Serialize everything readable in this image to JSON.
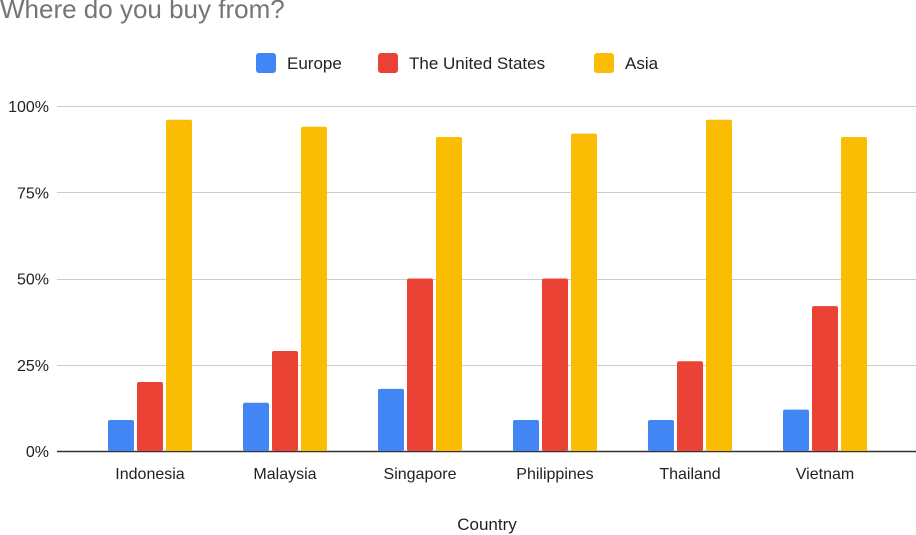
{
  "chart_data": {
    "type": "bar",
    "title": "Where do you buy from?",
    "xlabel": "Country",
    "ylabel": "",
    "ylim": [
      0,
      100
    ],
    "yticks": [
      "0%",
      "25%",
      "50%",
      "75%",
      "100%"
    ],
    "ytick_values": [
      0,
      25,
      50,
      75,
      100
    ],
    "grid": true,
    "legend_position": "top",
    "categories": [
      "Indonesia",
      "Malaysia",
      "Singapore",
      "Philippines",
      "Thailand",
      "Vietnam"
    ],
    "series": [
      {
        "name": "Europe",
        "color": "#4285F4",
        "values": [
          9,
          14,
          18,
          9,
          9,
          12
        ]
      },
      {
        "name": "The United States",
        "color": "#EA4335",
        "values": [
          20,
          29,
          50,
          50,
          26,
          42
        ]
      },
      {
        "name": "Asia",
        "color": "#FBBC04",
        "values": [
          96,
          94,
          91,
          92,
          96,
          91
        ]
      }
    ]
  }
}
